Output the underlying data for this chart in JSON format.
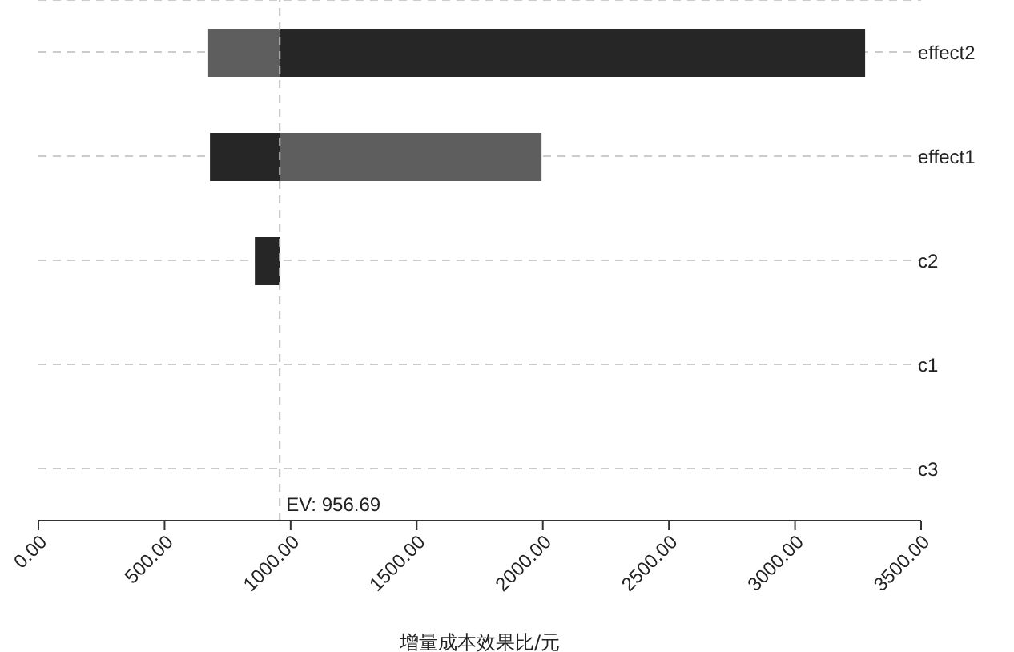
{
  "chart_data": {
    "type": "bar",
    "orientation": "horizontal",
    "categories": [
      "effect2",
      "effect1",
      "c2",
      "c1",
      "c3"
    ],
    "series": [
      {
        "color": "#5e5e5e",
        "base": [
          673,
          956.69,
          null,
          null,
          null
        ],
        "values": [
          283.69,
          1038.31,
          null,
          null,
          null
        ]
      },
      {
        "color": "#262626",
        "base": [
          956.69,
          680,
          858,
          null,
          null
        ],
        "values": [
          2321.31,
          276.69,
          98.69,
          null,
          null
        ]
      }
    ],
    "xlim": [
      0,
      3500
    ],
    "xticks": [
      {
        "value": 0,
        "label": "0.00"
      },
      {
        "value": 500,
        "label": "500.00"
      },
      {
        "value": 1000,
        "label": "1000.00"
      },
      {
        "value": 1500,
        "label": "1500.00"
      },
      {
        "value": 2000,
        "label": "2000.00"
      },
      {
        "value": 2500,
        "label": "2500.00"
      },
      {
        "value": 3000,
        "label": "3000.00"
      },
      {
        "value": 3500,
        "label": "3500.00"
      }
    ],
    "xlabel": "增量成本效果比/元",
    "ref_lines": [
      {
        "axis": "x",
        "value": 956.69,
        "label": "EV: 956.69",
        "color": "#bbbbbb",
        "line_style": "dashed"
      }
    ],
    "grid": "y",
    "legend": false
  }
}
